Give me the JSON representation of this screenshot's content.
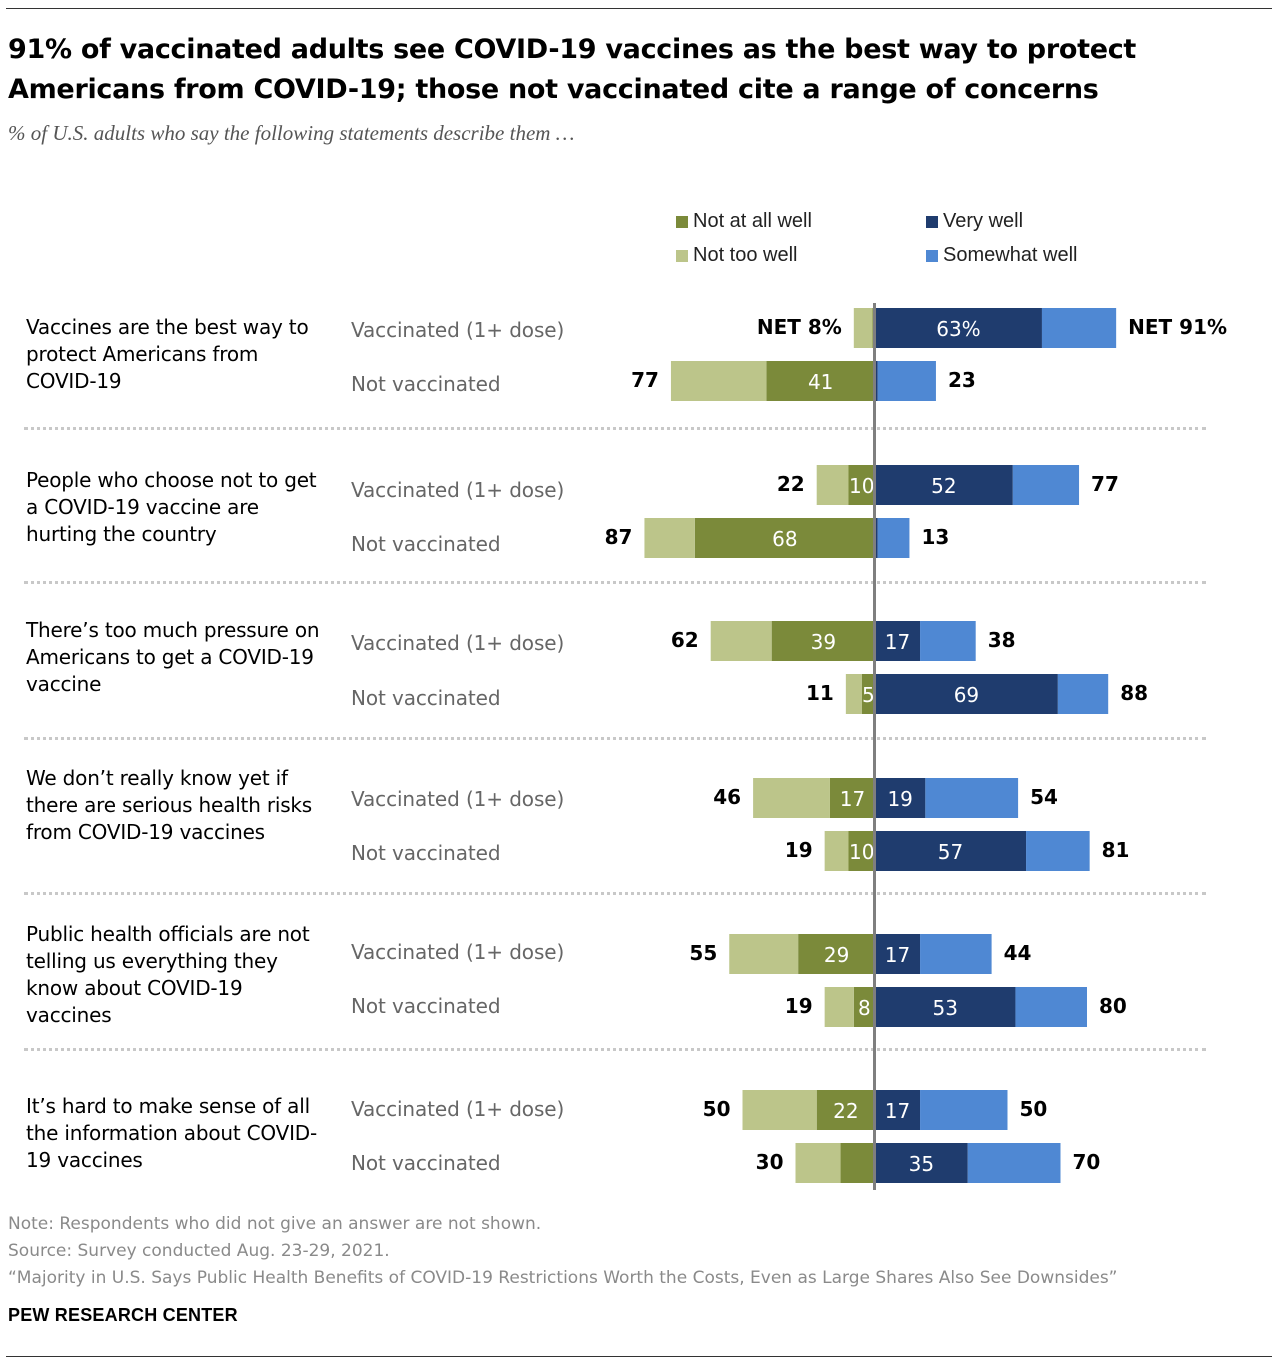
{
  "title": "91% of vaccinated adults see COVID-19 vaccines as the best way to protect Americans from COVID-19; those not vaccinated cite a range of concerns",
  "subtitle": "% of U.S. adults who say the following statements describe them …",
  "legend": [
    {
      "label": "Not at all well",
      "color": "#7b8a3a"
    },
    {
      "label": "Not too well",
      "color": "#bcc58a"
    },
    {
      "label": "Very well",
      "color": "#1f3c6e"
    },
    {
      "label": "Somewhat well",
      "color": "#4f88d3"
    }
  ],
  "colors": {
    "not_at_all": "#7b8a3a",
    "not_too": "#bcc58a",
    "very": "#1f3c6e",
    "somewhat": "#4f88d3",
    "axis": "#7f7f7f"
  },
  "chart_data": {
    "type": "bar",
    "orientation": "horizontal diverging stacked",
    "title": "91% of vaccinated adults see COVID-19 vaccines as the best way to protect Americans from COVID-19; those not vaccinated cite a range of concerns",
    "subtitle": "% of U.S. adults who say the following statements describe them …",
    "series_names": [
      "Not at all well",
      "Not too well",
      "Very well",
      "Somewhat well"
    ],
    "groups": [
      "Vaccinated (1+ dose)",
      "Not vaccinated"
    ],
    "statements": [
      {
        "label": "Vaccines are the best way to protect Americans from COVID-19",
        "rows": [
          {
            "group": "Vaccinated (1+ dose)",
            "net_neg": 8,
            "not_at_all": 1,
            "very": 63,
            "net_pos": 91,
            "net_neg_label": "NET 8%",
            "not_at_all_label": "",
            "very_label": "63%",
            "net_pos_label": "NET 91%"
          },
          {
            "group": "Not vaccinated",
            "net_neg": 77,
            "not_at_all": 41,
            "very": 1,
            "net_pos": 23,
            "net_neg_label": "77",
            "not_at_all_label": "41",
            "very_label": "",
            "net_pos_label": "23"
          }
        ]
      },
      {
        "label": "People who choose not to get a COVID-19 vaccine are hurting the country",
        "rows": [
          {
            "group": "Vaccinated (1+ dose)",
            "net_neg": 22,
            "not_at_all": 10,
            "very": 52,
            "net_pos": 77,
            "net_neg_label": "22",
            "not_at_all_label": "10",
            "very_label": "52",
            "net_pos_label": "77"
          },
          {
            "group": "Not vaccinated",
            "net_neg": 87,
            "not_at_all": 68,
            "very": 1,
            "net_pos": 13,
            "net_neg_label": "87",
            "not_at_all_label": "68",
            "very_label": "",
            "net_pos_label": "13"
          }
        ]
      },
      {
        "label": "There’s too much pressure on Americans to get a COVID-19 vaccine",
        "rows": [
          {
            "group": "Vaccinated (1+ dose)",
            "net_neg": 62,
            "not_at_all": 39,
            "very": 17,
            "net_pos": 38,
            "net_neg_label": "62",
            "not_at_all_label": "39",
            "very_label": "17",
            "net_pos_label": "38"
          },
          {
            "group": "Not vaccinated",
            "net_neg": 11,
            "not_at_all": 5,
            "very": 69,
            "net_pos": 88,
            "net_neg_label": "11",
            "not_at_all_label": "5",
            "very_label": "69",
            "net_pos_label": "88"
          }
        ]
      },
      {
        "label": "We don’t really know yet if there are serious health risks from COVID-19 vaccines",
        "rows": [
          {
            "group": "Vaccinated (1+ dose)",
            "net_neg": 46,
            "not_at_all": 17,
            "very": 19,
            "net_pos": 54,
            "net_neg_label": "46",
            "not_at_all_label": "17",
            "very_label": "19",
            "net_pos_label": "54"
          },
          {
            "group": "Not vaccinated",
            "net_neg": 19,
            "not_at_all": 10,
            "very": 57,
            "net_pos": 81,
            "net_neg_label": "19",
            "not_at_all_label": "10",
            "very_label": "57",
            "net_pos_label": "81"
          }
        ]
      },
      {
        "label": "Public health officials are not telling us everything they know about COVID-19 vaccines",
        "rows": [
          {
            "group": "Vaccinated (1+ dose)",
            "net_neg": 55,
            "not_at_all": 29,
            "very": 17,
            "net_pos": 44,
            "net_neg_label": "55",
            "not_at_all_label": "29",
            "very_label": "17",
            "net_pos_label": "44"
          },
          {
            "group": "Not vaccinated",
            "net_neg": 19,
            "not_at_all": 8,
            "very": 53,
            "net_pos": 80,
            "net_neg_label": "19",
            "not_at_all_label": "8",
            "very_label": "53",
            "net_pos_label": "80"
          }
        ]
      },
      {
        "label": "It’s hard to make sense of all the information about COVID-19 vaccines",
        "rows": [
          {
            "group": "Vaccinated (1+ dose)",
            "net_neg": 50,
            "not_at_all": 22,
            "very": 17,
            "net_pos": 50,
            "net_neg_label": "50",
            "not_at_all_label": "22",
            "very_label": "17",
            "net_pos_label": "50"
          },
          {
            "group": "Not vaccinated",
            "net_neg": 30,
            "not_at_all": 13,
            "very": 35,
            "net_pos": 70,
            "net_neg_label": "30",
            "not_at_all_label": "",
            "very_label": "35",
            "net_pos_label": "70"
          }
        ]
      }
    ]
  },
  "footer": {
    "note": "Note: Respondents who did not give an answer are not shown.",
    "source": "Source: Survey conducted Aug. 23-29, 2021.",
    "report": "“Majority in U.S. Says Public Health Benefits of COVID-19 Restrictions Worth the Costs, Even as Large Shares Also See Downsides”",
    "brand": "PEW RESEARCH CENTER"
  }
}
